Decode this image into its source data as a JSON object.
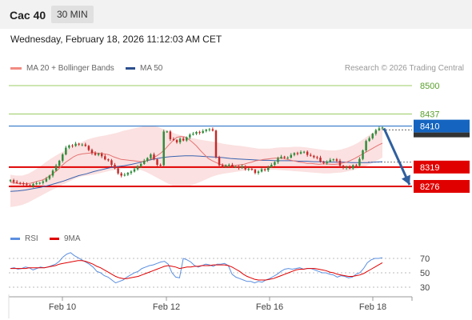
{
  "header": {
    "title": "Cac 40",
    "interval": "30 MIN"
  },
  "datetime": "Wednesday, February 18, 2026 11:12:03 AM CET",
  "legend": {
    "ma20": "MA 20 + Bollinger Bands",
    "ma50": "MA 50",
    "credit": "Research © 2026 Trading Central"
  },
  "rsi_legend": {
    "rsi": "RSI",
    "ma": "9MA"
  },
  "colors": {
    "bullish": "#2e8b3a",
    "bearish": "#c62828",
    "band": "#f8c8c8",
    "ma20": "#e57373",
    "ma50": "#3a63b0",
    "resistance": "#9ccc65",
    "support": "#e00000",
    "current": "#1565c0",
    "arrow": "#2f5f9e",
    "rsi": "#5b8fe0"
  },
  "chart_data": [
    {
      "type": "candlestick",
      "x_ticks": [
        "Feb 10",
        "Feb 12",
        "Feb 16",
        "Feb 18"
      ],
      "y_range": [
        8235,
        8520
      ],
      "levels": [
        {
          "label": "8500",
          "value": 8500,
          "kind": "resistance"
        },
        {
          "label": "8437",
          "value": 8437,
          "kind": "resistance"
        },
        {
          "label": "8410",
          "value": 8410,
          "kind": "current"
        },
        {
          "label": "8319",
          "value": 8319,
          "kind": "support"
        },
        {
          "label": "8276",
          "value": 8276,
          "kind": "support"
        }
      ],
      "forecast_target": 8276,
      "close_series": [
        8290,
        8286,
        8284,
        8283,
        8281,
        8279,
        8277,
        8281,
        8283,
        8284,
        8287,
        8293,
        8300,
        8311,
        8322,
        8333,
        8347,
        8362,
        8367,
        8366,
        8371,
        8369,
        8369,
        8366,
        8357,
        8350,
        8346,
        8349,
        8343,
        8336,
        8334,
        8324,
        8316,
        8305,
        8300,
        8302,
        8306,
        8309,
        8314,
        8321,
        8326,
        8333,
        8339,
        8347,
        8336,
        8324,
        8323,
        8398,
        8398,
        8381,
        8379,
        8374,
        8382,
        8378,
        8385,
        8391,
        8393,
        8397,
        8395,
        8399,
        8402,
        8403,
        8400,
        8341,
        8323,
        8320,
        8323,
        8324,
        8320,
        8320,
        8317,
        8321,
        8314,
        8315,
        8313,
        8306,
        8309,
        8314,
        8312,
        8319,
        8324,
        8330,
        8339,
        8342,
        8340,
        8340,
        8346,
        8350,
        8349,
        8352,
        8353,
        8346,
        8344,
        8341,
        8340,
        8331,
        8328,
        8331,
        8335,
        8336,
        8333,
        8322,
        8317,
        8319,
        8316,
        8323,
        8322,
        8337,
        8356,
        8377,
        8383,
        8393,
        8401,
        8405,
        8407
      ],
      "ma20": [
        8286,
        8284,
        8282,
        8282,
        8282,
        8283,
        8285,
        8288,
        8290,
        8294,
        8300,
        8306,
        8313,
        8322,
        8330,
        8336,
        8342,
        8346,
        8348,
        8349,
        8350,
        8351,
        8350,
        8349,
        8348,
        8346,
        8342,
        8339,
        8336,
        8335,
        8334,
        8333,
        8332,
        8331,
        8332,
        8335,
        8339,
        8344,
        8350,
        8358,
        8368,
        8377,
        8385,
        8387,
        8386,
        8381,
        8374,
        8366,
        8356,
        8347,
        8338,
        8333,
        8329,
        8325,
        8323,
        8321,
        8322,
        8323,
        8324,
        8325,
        8328,
        8330,
        8333,
        8334,
        8336,
        8337,
        8338,
        8339,
        8339,
        8338,
        8336,
        8334,
        8332,
        8330,
        8329,
        8327,
        8327,
        8326,
        8325,
        8326,
        8326,
        8325,
        8325,
        8326,
        8328,
        8330,
        8334,
        8338,
        8343,
        8348,
        8353,
        8358,
        8363,
        8368,
        8372
      ],
      "ma50": [
        8265,
        8266,
        8268,
        8271,
        8274,
        8278,
        8283,
        8288,
        8294,
        8300,
        8304,
        8309,
        8313,
        8317,
        8320,
        8322,
        8325,
        8329,
        8333,
        8337,
        8340,
        8342,
        8343,
        8344,
        8344,
        8343,
        8342,
        8341,
        8340,
        8338,
        8337,
        8336,
        8335,
        8334,
        8334,
        8333,
        8333,
        8333,
        8332,
        8332,
        8331,
        8331,
        8330,
        8330,
        8330,
        8329,
        8329,
        8329,
        8330,
        8331
      ],
      "bb_upper": [
        8302,
        8300,
        8300,
        8304,
        8311,
        8320,
        8330,
        8339,
        8347,
        8354,
        8361,
        8368,
        8374,
        8380,
        8384,
        8387,
        8389,
        8392,
        8395,
        8399,
        8402,
        8405,
        8408,
        8411,
        8411,
        8408,
        8403,
        8398,
        8393,
        8389,
        8386,
        8383,
        8380,
        8378,
        8376,
        8374,
        8371,
        8369,
        8367,
        8366,
        8364,
        8362,
        8360,
        8360,
        8360,
        8362,
        8363,
        8363,
        8364,
        8364,
        8363,
        8361,
        8359,
        8357,
        8356,
        8356,
        8358,
        8362,
        8367,
        8374,
        8383,
        8392,
        8400,
        8407
      ],
      "bb_lower": [
        8230,
        8232,
        8235,
        8240,
        8247,
        8254,
        8261,
        8268,
        8274,
        8281,
        8287,
        8293,
        8298,
        8300,
        8302,
        8305,
        8308,
        8311,
        8313,
        8315,
        8316,
        8315,
        8313,
        8308,
        8301,
        8294,
        8287,
        8280,
        8276,
        8275,
        8276,
        8280,
        8285,
        8291,
        8297,
        8301,
        8304,
        8306,
        8308,
        8310,
        8312,
        8313,
        8313,
        8313,
        8313,
        8313,
        8312,
        8311,
        8310,
        8309,
        8308,
        8307,
        8306,
        8305,
        8305,
        8306,
        8307,
        8309,
        8312,
        8316,
        8320,
        8326,
        8333,
        8340
      ]
    },
    {
      "type": "line",
      "title": "RSI",
      "y_ticks": [
        70,
        50,
        30
      ],
      "y_range": [
        15,
        85
      ],
      "series": [
        {
          "name": "RSI",
          "values": [
            56,
            57,
            55,
            56,
            58,
            57,
            54,
            56,
            58,
            57,
            58,
            60,
            62,
            66,
            72,
            76,
            78,
            74,
            71,
            68,
            65,
            62,
            58,
            52,
            50,
            46,
            44,
            40,
            36,
            38,
            40,
            44,
            47,
            50,
            52,
            56,
            58,
            60,
            61,
            63,
            65,
            66,
            62,
            50,
            44,
            43,
            70,
            68,
            65,
            60,
            58,
            60,
            62,
            61,
            59,
            62,
            62,
            63,
            60,
            48,
            44,
            42,
            40,
            38,
            38,
            36,
            38,
            37,
            40,
            42,
            45,
            48,
            52,
            55,
            56,
            55,
            56,
            57,
            55,
            56,
            56,
            54,
            52,
            50,
            50,
            48,
            47,
            44,
            46,
            45,
            43,
            44,
            48,
            50,
            56,
            64,
            68,
            70,
            70,
            71
          ]
        },
        {
          "name": "9MA",
          "values": [
            56,
            56,
            56,
            56,
            56,
            57,
            57,
            57,
            57,
            57,
            58,
            59,
            60,
            62,
            63,
            64,
            65,
            66,
            67,
            67,
            66,
            64,
            62,
            59,
            57,
            54,
            51,
            48,
            45,
            43,
            42,
            42,
            43,
            44,
            45,
            47,
            49,
            51,
            53,
            55,
            57,
            59,
            60,
            59,
            58,
            56,
            57,
            58,
            58,
            59,
            59,
            60,
            60,
            60,
            61,
            61,
            61,
            61,
            60,
            58,
            55,
            52,
            48,
            45,
            43,
            41,
            40,
            40,
            40,
            41,
            42,
            44,
            46,
            48,
            50,
            52,
            54,
            55,
            55,
            56,
            56,
            56,
            55,
            54,
            53,
            51,
            50,
            48,
            47,
            46,
            45,
            45,
            46,
            47,
            49,
            52,
            55,
            58,
            61,
            64
          ]
        }
      ]
    }
  ]
}
